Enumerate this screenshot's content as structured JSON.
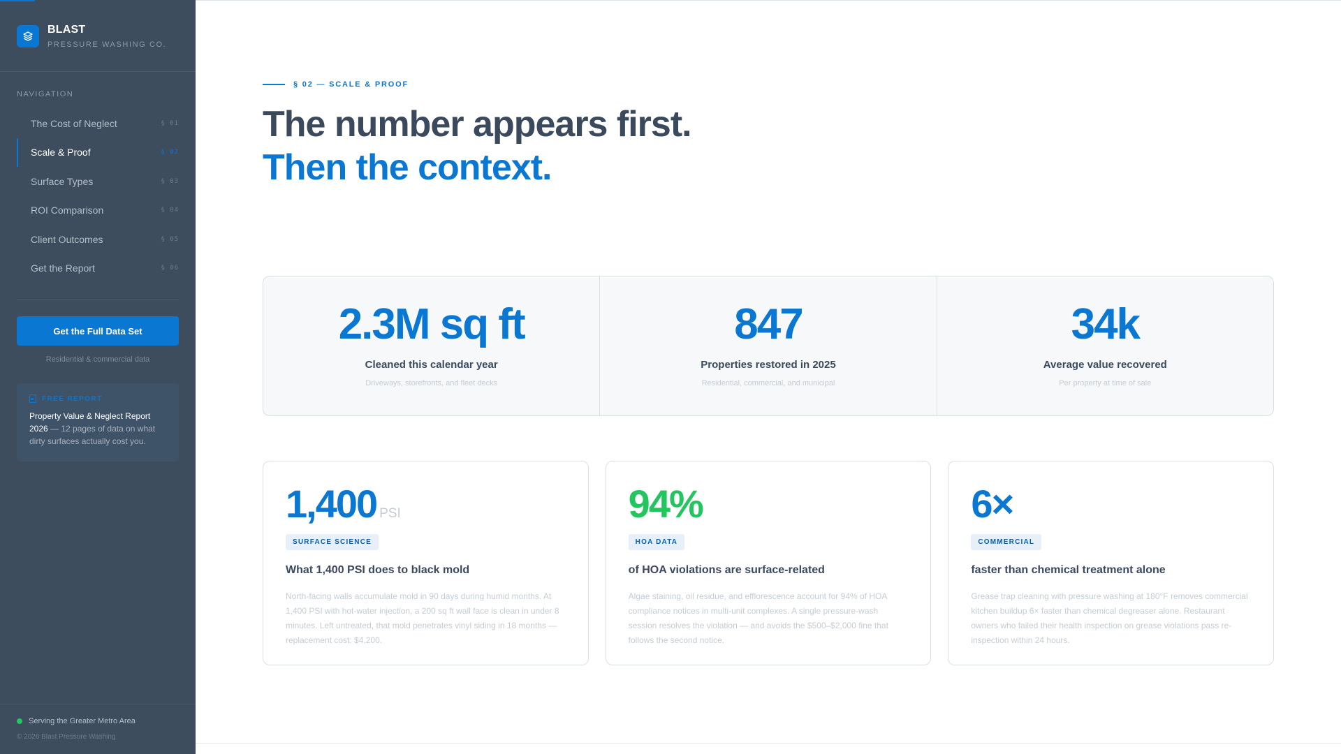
{
  "brand": {
    "name": "BLAST",
    "subtitle": "PRESSURE WASHING CO."
  },
  "nav": {
    "heading": "NAVIGATION",
    "items": [
      {
        "label": "The Cost of Neglect",
        "num": "§ 01",
        "active": false
      },
      {
        "label": "Scale & Proof",
        "num": "§ 02",
        "active": true
      },
      {
        "label": "Surface Types",
        "num": "§ 03",
        "active": false
      },
      {
        "label": "ROI Comparison",
        "num": "§ 04",
        "active": false
      },
      {
        "label": "Client Outcomes",
        "num": "§ 05",
        "active": false
      },
      {
        "label": "Get the Report",
        "num": "§ 06",
        "active": false
      }
    ]
  },
  "cta": {
    "label": "Get the Full Data Set",
    "caption": "Residential & commercial data"
  },
  "free_report": {
    "heading": "FREE REPORT",
    "title": "Property Value & Neglect Report 2026",
    "body": " — 12 pages of data on what dirty surfaces actually cost you."
  },
  "footer": {
    "service_area": "Serving the Greater Metro Area",
    "copyright": "© 2026 Blast Pressure Washing"
  },
  "section": {
    "eyebrow": "§ 02 — SCALE & PROOF",
    "headline_dark": "The number appears first.",
    "headline_blue": "Then the context."
  },
  "stats": [
    {
      "value": "2.3M sq ft",
      "label": "Cleaned this calendar year",
      "sub": "Driveways, storefronts, and fleet decks"
    },
    {
      "value": "847",
      "label": "Properties restored in 2025",
      "sub": "Residential, commercial, and municipal"
    },
    {
      "value": "34k",
      "label": "Average value recovered",
      "sub": "Per property at time of sale"
    }
  ],
  "cards": [
    {
      "value": "1,400",
      "unit": "PSI",
      "tag": "SURFACE SCIENCE",
      "title": "What 1,400 PSI does to black mold",
      "body": "North-facing walls accumulate mold in 90 days during humid months. At 1,400 PSI with hot-water injection, a 200 sq ft wall face is clean in under 8 minutes. Left untreated, that mold penetrates vinyl siding in 18 months — replacement cost: $4,200."
    },
    {
      "value": "94%",
      "unit": "",
      "tag": "HOA DATA",
      "title": "of HOA violations are surface-related",
      "body": "Algae staining, oil residue, and efflorescence account for 94% of HOA compliance notices in multi-unit complexes. A single pressure-wash session resolves the violation — and avoids the $500–$2,000 fine that follows the second notice."
    },
    {
      "value": "6×",
      "unit": "",
      "tag": "COMMERCIAL",
      "title": "faster than chemical treatment alone",
      "body": "Grease trap cleaning with pressure washing at 180°F removes commercial kitchen buildup 6× faster than chemical degreaser alone. Restaurant owners who failed their health inspection on grease violations pass re-inspection within 24 hours."
    }
  ],
  "colors": {
    "accent": "#0a77d2",
    "sidebar": "#3d4d5e",
    "success": "#22c55e"
  }
}
